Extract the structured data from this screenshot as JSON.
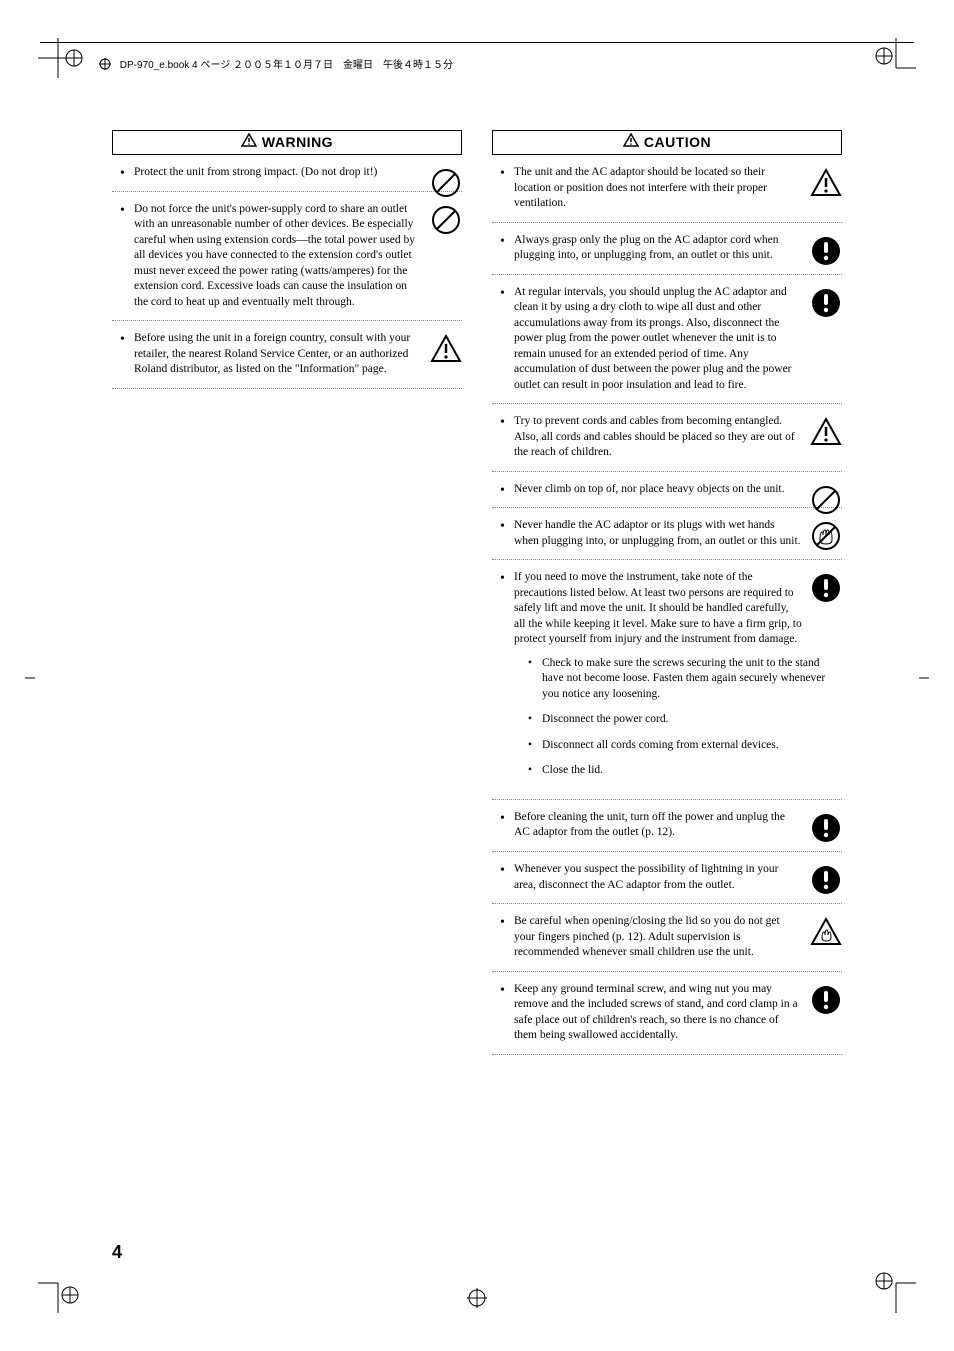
{
  "header_text": "DP-970_e.book  4 ページ  ２００５年１０月７日　金曜日　午後４時１５分",
  "page_number": "4",
  "warning": {
    "label": "WARNING",
    "items": [
      {
        "text": "Protect the unit from strong impact.\n(Do not drop it!)",
        "icon": "prohibit",
        "wrap": false
      },
      {
        "text": "Do not force the unit's power-supply cord to share an outlet with an unreasonable number of other devices. Be especially careful when using extension cords—the total power used by all devices you have connected to the extension cord's outlet must never exceed the power rating (watts/amperes) for the extension cord. Excessive loads can cause the insulation on the cord to heat up and eventually melt through.",
        "icon": "prohibit",
        "wrap": true
      },
      {
        "text": "Before using the unit in a foreign country, consult with your retailer, the nearest Roland Service Center, or an authorized Roland distributor, as listed on the \"Information\" page.",
        "icon": "warn-tri",
        "wrap": false
      }
    ]
  },
  "caution": {
    "label": "CAUTION",
    "items": [
      {
        "text": "The unit and the AC adaptor should be located so their location or position does not interfere with their proper ventilation.",
        "icon": "warn-tri",
        "wrap": false
      },
      {
        "text": "Always grasp only the plug on the AC adaptor cord when plugging into, or unplugging from, an outlet or this unit.",
        "icon": "mandatory",
        "wrap": false
      },
      {
        "text": "At regular intervals, you should unplug the AC adaptor and clean it by using a dry cloth to wipe all dust and other accumulations away from its prongs. Also, disconnect the power plug from the power outlet whenever the unit is to remain unused for an extended period of time. Any accumulation of dust between the power plug and the power outlet can result in poor insulation and lead to fire.",
        "icon": "mandatory",
        "wrap": true
      },
      {
        "text": "Try to prevent cords and cables from becoming entangled. Also, all cords and cables should be placed so they are out of the reach of children.",
        "icon": "warn-tri",
        "wrap": false
      },
      {
        "text": "Never climb on top of, nor place heavy objects on the unit.",
        "icon": "prohibit",
        "wrap": false
      },
      {
        "text": "Never handle the AC adaptor or its plugs with wet hands when plugging into, or unplugging from, an outlet or this unit.",
        "icon": "wet-hand",
        "wrap": false
      },
      {
        "text": "If you need to move the instrument, take note of the precautions listed below. At least two persons are required to safely lift and move the unit. It should be handled carefully, all the while keeping it level. Make sure to have a firm grip, to protect yourself from injury and the instrument from damage.",
        "icon": "mandatory",
        "wrap": true,
        "subs": [
          "Check to make sure the screws securing the unit to the stand have not become loose. Fasten them again securely whenever you notice any loosening.",
          "Disconnect the power cord.",
          "Disconnect all cords coming from external devices.",
          "Close the lid."
        ]
      },
      {
        "text": "Before cleaning the unit, turn off the power and unplug the AC adaptor from the outlet (p. 12).",
        "icon": "mandatory",
        "wrap": false
      },
      {
        "text": "Whenever you suspect the possibility of lightning in your area, disconnect the AC adaptor from the outlet.",
        "icon": "mandatory",
        "wrap": false
      },
      {
        "text": "Be careful when opening/closing the lid so you do not get your fingers pinched (p. 12). Adult supervision is recommended whenever small children use the unit.",
        "icon": "pinch",
        "wrap": false
      },
      {
        "text": "Keep any ground terminal screw, and wing nut you may remove and the included screws of stand, and cord clamp in a safe place out of children's reach, so there is no chance of them being swallowed accidentally.",
        "icon": "mandatory",
        "wrap": true
      }
    ]
  },
  "icons": {
    "prohibit": "prohibit",
    "warn-tri": "warn-tri",
    "mandatory": "mandatory",
    "wet-hand": "wet-hand",
    "pinch": "pinch"
  }
}
